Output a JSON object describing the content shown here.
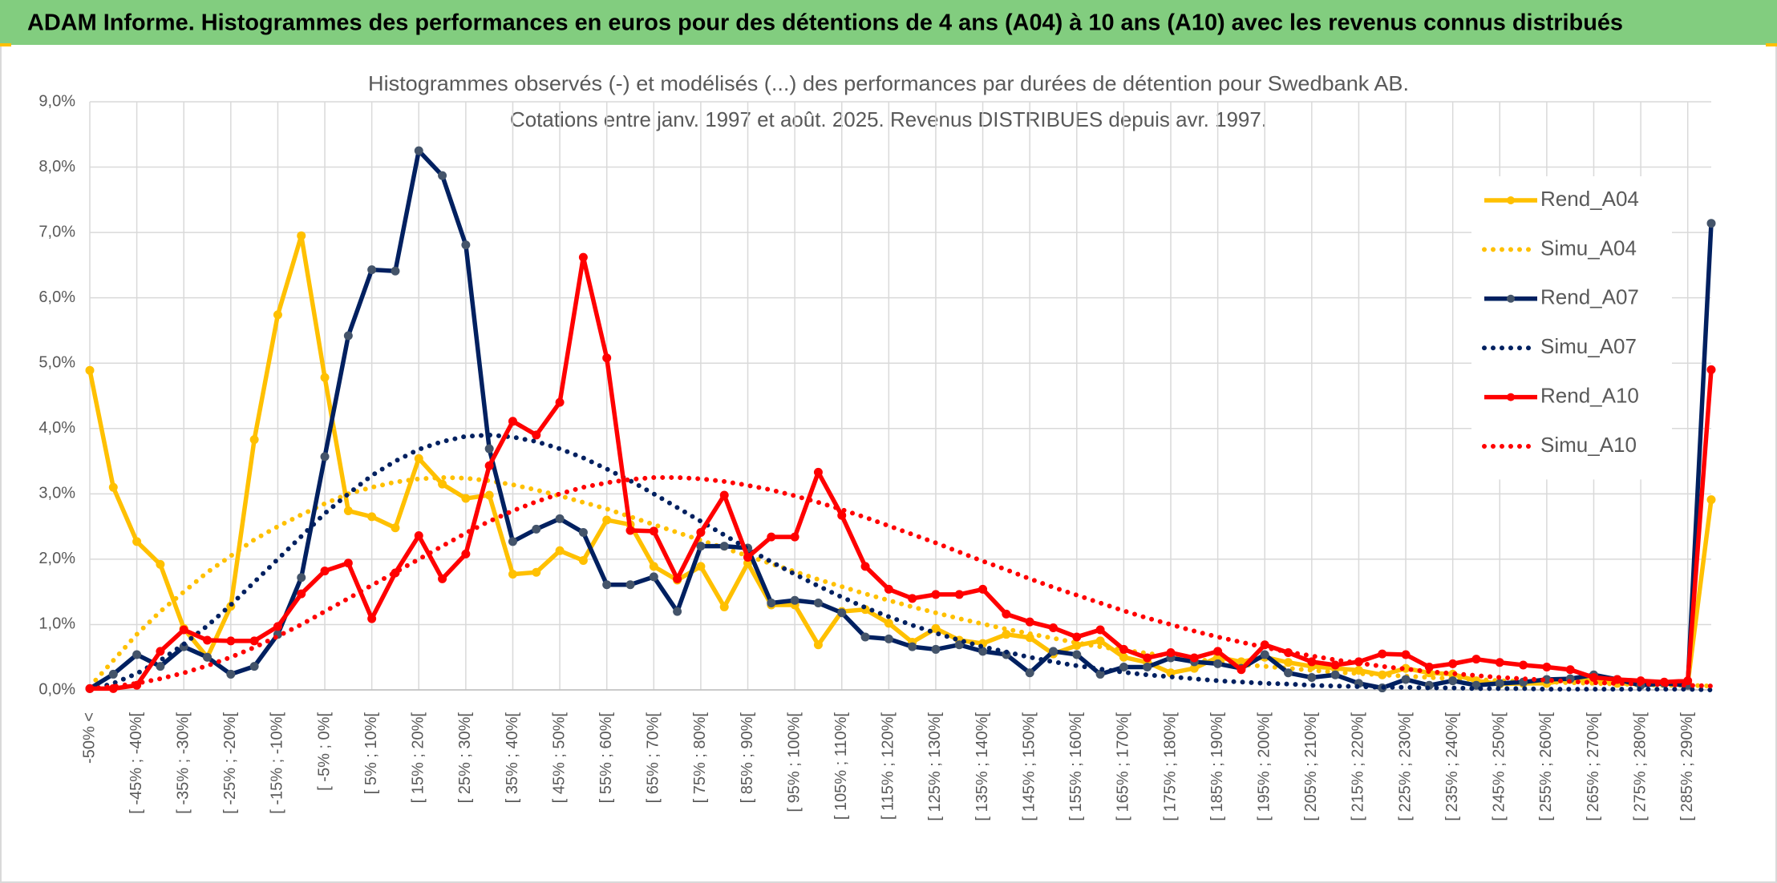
{
  "header": {
    "title": "ADAM Informe. Histogrammes des performances en euros pour des détentions de 4 ans (A04) à 10 ans (A10) avec les revenus connus distribués"
  },
  "chart_data": {
    "type": "line",
    "title": "Histogrammes observés (-) et modélisés (...) des performances par durées de détention pour Swedbank AB.",
    "subtitle": "Cotations entre janv. 1997 et août. 2025. Revenus DISTRIBUES depuis avr. 1997.",
    "categories": [
      "-50% <",
      null,
      "[ -45% ; -40%[",
      null,
      "[ -35% ; -30%[",
      null,
      "[ -25% ; -20%[",
      null,
      "[ -15% ; -10%[",
      null,
      "[ -5% ; 0%[",
      null,
      "[ 5% ; 10%[",
      null,
      "[ 15% ; 20%[",
      null,
      "[ 25% ; 30%[",
      null,
      "[ 35% ; 40%[",
      null,
      "[ 45% ; 50%[",
      null,
      "[ 55% ; 60%[",
      null,
      "[ 65% ; 70%[",
      null,
      "[ 75% ; 80%[",
      null,
      "[ 85% ; 90%[",
      null,
      "[ 95% ; 100%[",
      null,
      "[ 105% ; 110%[",
      null,
      "[ 115% ; 120%[",
      null,
      "[ 125% ; 130%[",
      null,
      "[ 135% ; 140%[",
      null,
      "[ 145% ; 150%[",
      null,
      "[ 155% ; 160%[",
      null,
      "[ 165% ; 170%[",
      null,
      "[ 175% ; 180%[",
      null,
      "[ 185% ; 190%[",
      null,
      "[ 195% ; 200%[",
      null,
      "[ 205% ; 210%[",
      null,
      "[ 215% ; 220%[",
      null,
      "[ 225% ; 230%[",
      null,
      "[ 235% ; 240%[",
      null,
      "[ 245% ; 250%[",
      null,
      "[ 255% ; 260%[",
      null,
      "[ 265% ; 270%[",
      null,
      "[ 275% ; 280%[",
      null,
      "[ 285% ; 290%[",
      null
    ],
    "ylim": [
      0,
      9
    ],
    "yticks": [
      {
        "value": 0,
        "label": "0,0%"
      },
      {
        "value": 1,
        "label": "1,0%"
      },
      {
        "value": 2,
        "label": "2,0%"
      },
      {
        "value": 3,
        "label": "3,0%"
      },
      {
        "value": 4,
        "label": "4,0%"
      },
      {
        "value": 5,
        "label": "5,0%"
      },
      {
        "value": 6,
        "label": "6,0%"
      },
      {
        "value": 7,
        "label": "7,0%"
      },
      {
        "value": 8,
        "label": "8,0%"
      },
      {
        "value": 9,
        "label": "9,0%"
      }
    ],
    "grid": true,
    "legend": "right",
    "series": [
      {
        "name": "Rend_A04",
        "color": "#FFC000",
        "style": "solid",
        "markers": true,
        "marker_color": "#FFC000",
        "values": [
          4.89,
          3.1,
          2.27,
          1.92,
          0.94,
          0.5,
          1.28,
          3.83,
          5.74,
          6.95,
          4.78,
          2.74,
          2.65,
          2.48,
          3.54,
          3.15,
          2.93,
          2.98,
          1.77,
          1.8,
          2.13,
          1.98,
          2.6,
          2.53,
          1.89,
          1.68,
          1.89,
          1.27,
          1.94,
          1.3,
          1.3,
          0.69,
          1.2,
          1.23,
          1.02,
          0.73,
          0.94,
          0.76,
          0.71,
          0.85,
          0.8,
          0.55,
          0.68,
          0.75,
          0.5,
          0.42,
          0.26,
          0.33,
          0.5,
          0.43,
          0.5,
          0.42,
          0.36,
          0.33,
          0.3,
          0.23,
          0.33,
          0.26,
          0.24,
          0.14,
          0.09,
          0.1,
          0.1,
          0.16,
          0.14,
          0.1,
          0.09,
          0.1,
          0.1,
          2.91
        ]
      },
      {
        "name": "Simu_A04",
        "color": "#FFC000",
        "style": "dotted",
        "markers": false,
        "values": [
          0.05,
          0.45,
          0.85,
          1.2,
          1.5,
          1.8,
          2.05,
          2.3,
          2.5,
          2.68,
          2.85,
          3.0,
          3.1,
          3.18,
          3.23,
          3.25,
          3.24,
          3.2,
          3.14,
          3.06,
          2.97,
          2.87,
          2.77,
          2.65,
          2.53,
          2.41,
          2.29,
          2.17,
          2.05,
          1.93,
          1.81,
          1.69,
          1.58,
          1.47,
          1.37,
          1.27,
          1.18,
          1.09,
          1.01,
          0.93,
          0.86,
          0.79,
          0.72,
          0.66,
          0.61,
          0.56,
          0.51,
          0.47,
          0.43,
          0.39,
          0.36,
          0.33,
          0.3,
          0.27,
          0.25,
          0.23,
          0.21,
          0.19,
          0.17,
          0.16,
          0.14,
          0.13,
          0.12,
          0.11,
          0.1,
          0.09,
          0.08,
          0.07,
          0.07,
          0.06
        ]
      },
      {
        "name": "Rend_A07",
        "color": "#002060",
        "style": "solid",
        "markers": true,
        "marker_color": "#44546A",
        "values": [
          0.02,
          0.24,
          0.54,
          0.36,
          0.66,
          0.5,
          0.24,
          0.36,
          0.85,
          1.72,
          3.57,
          5.42,
          6.43,
          6.41,
          8.25,
          7.87,
          6.81,
          3.69,
          2.27,
          2.46,
          2.62,
          2.41,
          1.61,
          1.61,
          1.73,
          1.2,
          2.2,
          2.2,
          2.17,
          1.33,
          1.37,
          1.33,
          1.18,
          0.81,
          0.78,
          0.66,
          0.62,
          0.69,
          0.59,
          0.54,
          0.26,
          0.59,
          0.54,
          0.24,
          0.35,
          0.35,
          0.49,
          0.43,
          0.4,
          0.33,
          0.54,
          0.26,
          0.19,
          0.23,
          0.1,
          0.03,
          0.16,
          0.07,
          0.14,
          0.07,
          0.1,
          0.12,
          0.16,
          0.17,
          0.23,
          0.16,
          0.07,
          0.1,
          0.07,
          7.14
        ]
      },
      {
        "name": "Simu_A07",
        "color": "#002060",
        "style": "dotted",
        "markers": false,
        "values": [
          0.0,
          0.1,
          0.25,
          0.45,
          0.7,
          0.98,
          1.3,
          1.65,
          2.0,
          2.35,
          2.7,
          3.0,
          3.28,
          3.5,
          3.68,
          3.8,
          3.88,
          3.9,
          3.87,
          3.8,
          3.69,
          3.55,
          3.38,
          3.2,
          3.0,
          2.79,
          2.58,
          2.37,
          2.16,
          1.96,
          1.77,
          1.59,
          1.42,
          1.26,
          1.12,
          0.99,
          0.87,
          0.76,
          0.66,
          0.58,
          0.5,
          0.43,
          0.37,
          0.32,
          0.27,
          0.23,
          0.2,
          0.17,
          0.14,
          0.12,
          0.1,
          0.09,
          0.07,
          0.06,
          0.05,
          0.04,
          0.04,
          0.03,
          0.03,
          0.02,
          0.02,
          0.02,
          0.01,
          0.01,
          0.01,
          0.01,
          0.01,
          0.01,
          0.01,
          0.0
        ]
      },
      {
        "name": "Rend_A10",
        "color": "#FF0000",
        "style": "solid",
        "markers": true,
        "marker_color": "#FF0000",
        "values": [
          0.02,
          0.02,
          0.07,
          0.59,
          0.92,
          0.76,
          0.75,
          0.75,
          0.97,
          1.47,
          1.82,
          1.94,
          1.09,
          1.79,
          2.36,
          1.7,
          2.08,
          3.43,
          4.11,
          3.9,
          4.4,
          6.62,
          5.08,
          2.44,
          2.43,
          1.7,
          2.41,
          2.98,
          2.03,
          2.34,
          2.34,
          3.33,
          2.67,
          1.89,
          1.54,
          1.4,
          1.46,
          1.46,
          1.54,
          1.16,
          1.04,
          0.95,
          0.81,
          0.92,
          0.62,
          0.49,
          0.57,
          0.49,
          0.59,
          0.31,
          0.69,
          0.57,
          0.43,
          0.38,
          0.43,
          0.55,
          0.54,
          0.35,
          0.4,
          0.47,
          0.42,
          0.38,
          0.35,
          0.31,
          0.19,
          0.16,
          0.14,
          0.12,
          0.14,
          4.9
        ]
      },
      {
        "name": "Simu_A10",
        "color": "#FF0000",
        "style": "dotted",
        "markers": false,
        "values": [
          0.02,
          0.05,
          0.1,
          0.17,
          0.26,
          0.37,
          0.5,
          0.65,
          0.82,
          1.0,
          1.2,
          1.4,
          1.6,
          1.8,
          2.0,
          2.2,
          2.4,
          2.58,
          2.74,
          2.88,
          3.0,
          3.1,
          3.17,
          3.22,
          3.25,
          3.25,
          3.23,
          3.19,
          3.13,
          3.06,
          2.97,
          2.87,
          2.76,
          2.64,
          2.51,
          2.38,
          2.25,
          2.11,
          1.97,
          1.84,
          1.7,
          1.57,
          1.45,
          1.33,
          1.21,
          1.1,
          1.0,
          0.9,
          0.81,
          0.73,
          0.65,
          0.58,
          0.52,
          0.46,
          0.41,
          0.36,
          0.32,
          0.28,
          0.25,
          0.22,
          0.19,
          0.17,
          0.15,
          0.13,
          0.11,
          0.1,
          0.09,
          0.08,
          0.07,
          0.06
        ]
      }
    ]
  }
}
